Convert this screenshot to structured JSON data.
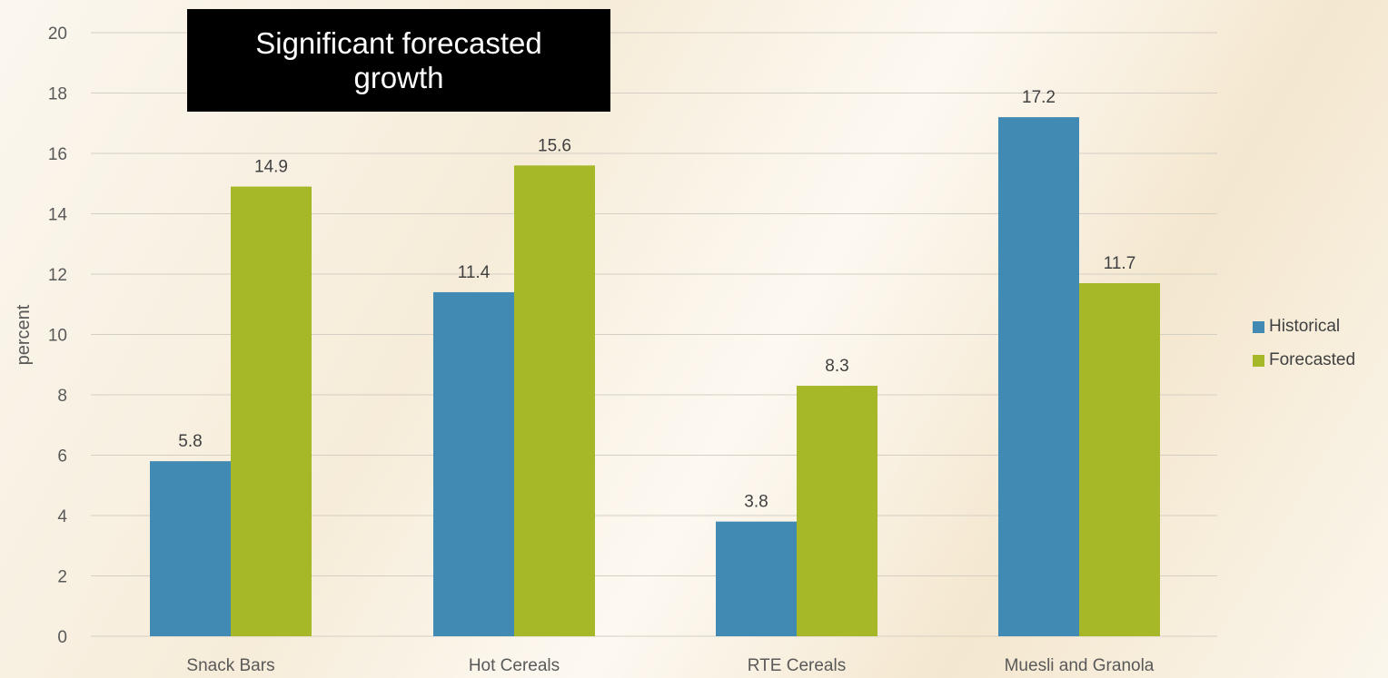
{
  "chart_data": {
    "type": "bar",
    "title": "Significant forecasted growth",
    "xlabel": "",
    "ylabel": "percent",
    "ylim": [
      0,
      20
    ],
    "yticks": [
      0,
      2,
      4,
      6,
      8,
      10,
      12,
      14,
      16,
      18,
      20
    ],
    "grid": true,
    "legend_position": "right",
    "categories": [
      "Snack Bars",
      "Hot Cereals",
      "RTE Cereals",
      "Muesli and Granola"
    ],
    "series": [
      {
        "name": "Historical",
        "color": "#418ab3",
        "values": [
          5.8,
          11.4,
          3.8,
          17.2
        ]
      },
      {
        "name": "Forecasted",
        "color": "#a6b727",
        "values": [
          14.9,
          15.6,
          8.3,
          11.7
        ]
      }
    ]
  }
}
